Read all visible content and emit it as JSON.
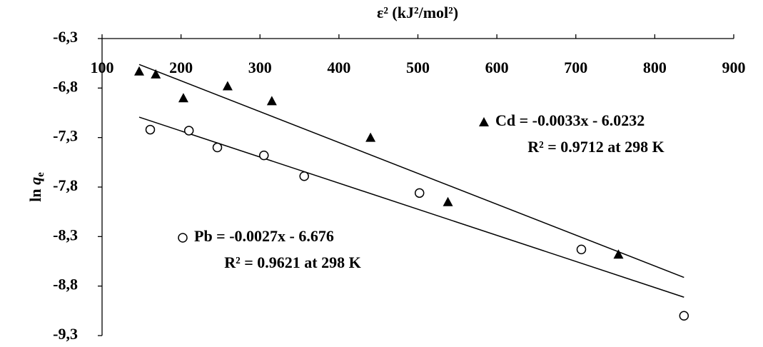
{
  "chart_data": {
    "type": "scatter",
    "xlabel": "ε² (kJ²/mol²)",
    "ylabel": [
      "ln",
      "q",
      "e"
    ],
    "xlim": [
      100,
      900
    ],
    "xticks": [
      100,
      200,
      300,
      400,
      500,
      600,
      700,
      800,
      900
    ],
    "ylim": [
      -9.3,
      -6.3
    ],
    "yticks": [
      {
        "value": -6.3,
        "label": "-6,3"
      },
      {
        "value": -6.8,
        "label": "-6,8"
      },
      {
        "value": -7.3,
        "label": "-7,3"
      },
      {
        "value": -7.8,
        "label": "-7,8"
      },
      {
        "value": -8.3,
        "label": "-8,3"
      },
      {
        "value": -8.8,
        "label": "-8,8"
      },
      {
        "value": -9.3,
        "label": "-9,3"
      }
    ],
    "trendline": true,
    "series": [
      {
        "name": "Cd = -0.0033x - 6.0232",
        "note": "R² = 0.9712 at 298 K",
        "marker": "triangle",
        "color": "#000000",
        "x": [
          147,
          168,
          203,
          259,
          315,
          440,
          538,
          754
        ],
        "values": [
          -6.63,
          -6.66,
          -6.9,
          -6.78,
          -6.93,
          -7.3,
          -7.95,
          -8.48
        ]
      },
      {
        "name": "Pb = -0.0027x - 6.676",
        "note": "R² = 0.9621 at 298 K",
        "marker": "circle",
        "color": "#000000",
        "x": [
          161,
          210,
          246,
          305,
          356,
          502,
          707,
          837
        ],
        "values": [
          -7.22,
          -7.23,
          -7.4,
          -7.48,
          -7.69,
          -7.86,
          -8.43,
          -9.1
        ]
      }
    ]
  }
}
